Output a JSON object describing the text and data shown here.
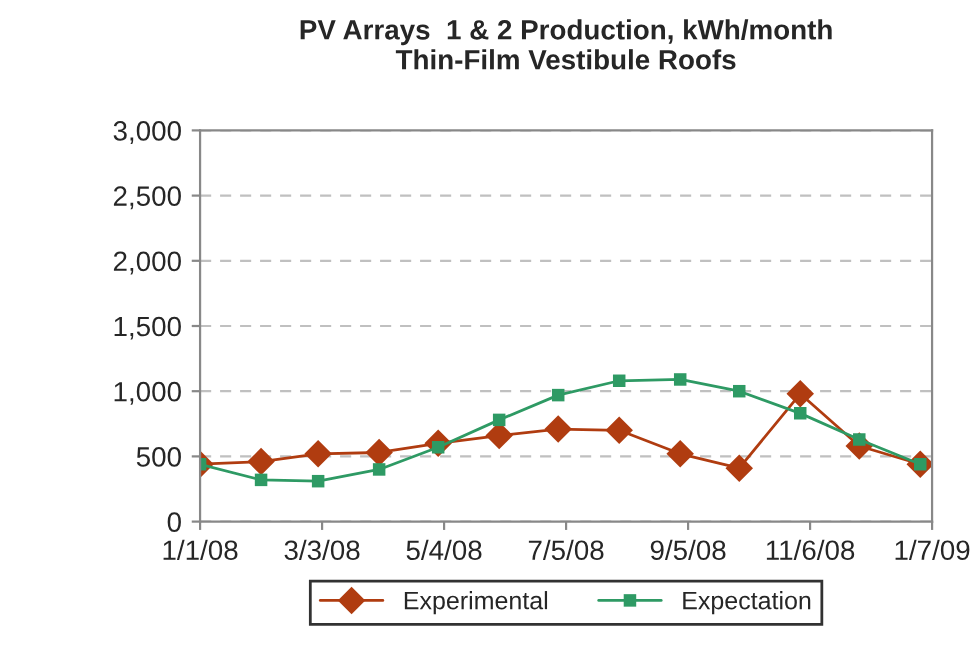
{
  "chart_data": {
    "type": "line",
    "title": "PV Arrays  1 & 2 Production, kWh/month\nThin-Film Vestibule Roofs",
    "x": [
      "2008-01-01",
      "2008-02-01",
      "2008-03-01",
      "2008-04-01",
      "2008-05-01",
      "2008-06-01",
      "2008-07-01",
      "2008-08-01",
      "2008-09-01",
      "2008-10-01",
      "2008-11-01",
      "2008-12-01",
      "2009-01-01"
    ],
    "series": [
      {
        "name": "Experimental",
        "color": "#b03c10",
        "marker": "diamond",
        "values": [
          440,
          460,
          520,
          530,
          600,
          660,
          710,
          700,
          520,
          410,
          980,
          580,
          440
        ]
      },
      {
        "name": "Expectation",
        "color": "#2e9a64",
        "marker": "square",
        "values": [
          440,
          320,
          310,
          400,
          570,
          780,
          970,
          1080,
          1090,
          1000,
          830,
          630,
          440
        ]
      }
    ],
    "xlim": [
      "2008-01-01",
      "2009-01-07"
    ],
    "xticks": [
      {
        "value": "2008-01-01",
        "label": "1/1/08"
      },
      {
        "value": "2008-03-03",
        "label": "3/3/08"
      },
      {
        "value": "2008-05-04",
        "label": "5/4/08"
      },
      {
        "value": "2008-07-05",
        "label": "7/5/08"
      },
      {
        "value": "2008-09-05",
        "label": "9/5/08"
      },
      {
        "value": "2008-11-06",
        "label": "11/6/08"
      },
      {
        "value": "2009-01-07",
        "label": "1/7/09"
      }
    ],
    "ylim": [
      0,
      3000
    ],
    "yticks": [
      {
        "value": 0,
        "label": "0"
      },
      {
        "value": 500,
        "label": "500"
      },
      {
        "value": 1000,
        "label": "1,000"
      },
      {
        "value": 1500,
        "label": "1,500"
      },
      {
        "value": 2000,
        "label": "2,000"
      },
      {
        "value": 2500,
        "label": "2,500"
      },
      {
        "value": 3000,
        "label": "3,000"
      }
    ],
    "grid": "y",
    "legend": "bottom",
    "line_style": "solid"
  }
}
